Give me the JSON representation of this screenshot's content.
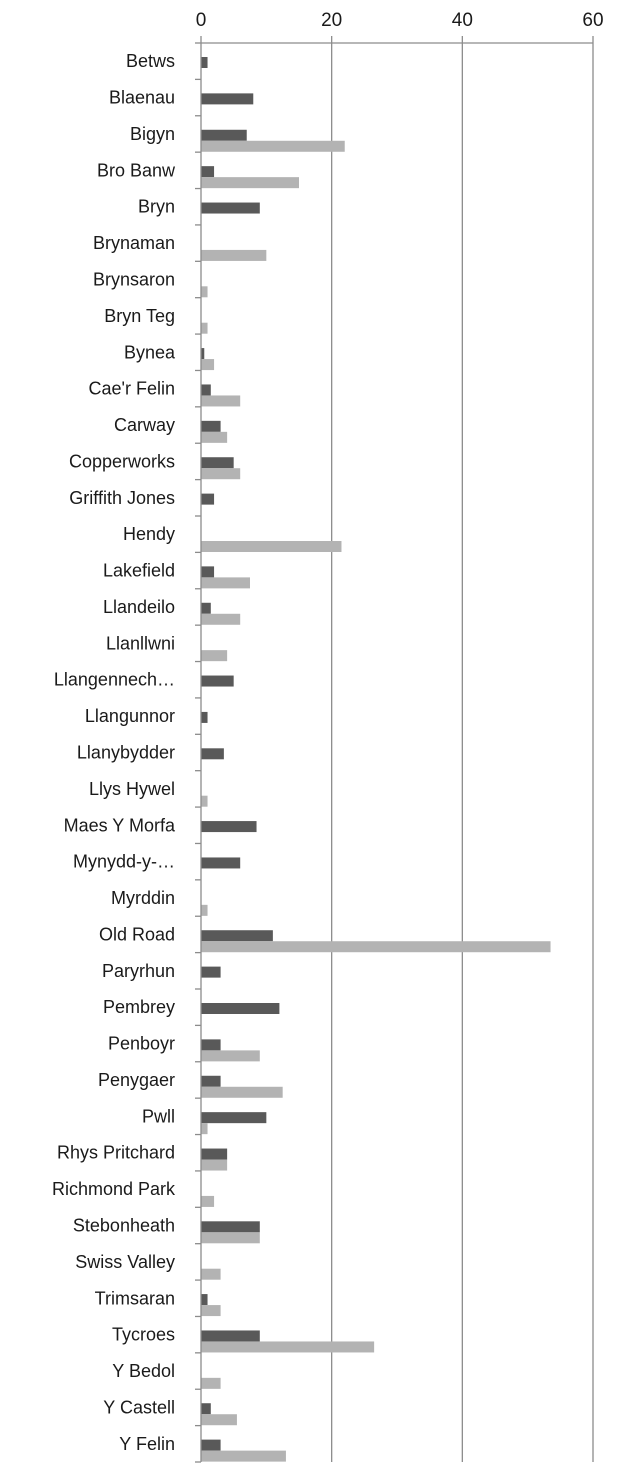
{
  "chart_data": {
    "type": "bar",
    "orientation": "horizontal",
    "title": "",
    "xlabel": "",
    "ylabel": "",
    "xlim": [
      0,
      60
    ],
    "x_ticks": [
      0,
      20,
      40,
      60
    ],
    "x_tick_labels": [
      "0",
      "20",
      "40",
      "60"
    ],
    "x_axis_position": "top",
    "grid": true,
    "legend": "none",
    "categories": [
      "Betws",
      "Blaenau",
      "Bigyn",
      "Bro Banw",
      "Bryn",
      "Brynaman",
      "Brynsaron",
      "Bryn Teg",
      "Bynea",
      "Cae'r Felin",
      "Carway",
      "Copperworks",
      "Griffith Jones",
      "Hendy",
      "Lakefield",
      "Llandeilo",
      "Llanllwni",
      "Llangennech…",
      "Llangunnor",
      "Llanybydder",
      "Llys Hywel",
      "Maes Y Morfa",
      "Mynydd-y-…",
      "Myrddin",
      "Old Road",
      "Paryrhun",
      "Pembrey",
      "Penboyr",
      "Penygaer",
      "Pwll",
      "Rhys Pritchard",
      "Richmond Park",
      "Stebonheath",
      "Swiss Valley",
      "Trimsaran",
      "Tycroes",
      "Y Bedol",
      "Y Castell",
      "Y Felin"
    ],
    "series": [
      {
        "color": "#595959",
        "values": [
          1,
          8,
          7,
          2,
          9,
          0,
          0,
          0,
          0.5,
          1.5,
          3,
          5,
          2,
          0,
          2,
          1.5,
          0,
          5,
          1,
          3.5,
          0,
          8.5,
          6,
          0,
          11,
          3,
          12,
          3,
          3,
          10,
          4,
          0,
          9,
          0,
          1,
          9,
          0,
          1.5,
          3
        ]
      },
      {
        "color": "#b3b3b3",
        "values": [
          0,
          0,
          22,
          15,
          0,
          10,
          1,
          1,
          2,
          6,
          4,
          6,
          0,
          21.5,
          7.5,
          6,
          4,
          0,
          0,
          0,
          1,
          0,
          0,
          1,
          53.5,
          0,
          0,
          9,
          12.5,
          1,
          4,
          2,
          9,
          3,
          3,
          26.5,
          3,
          5.5,
          13
        ]
      }
    ]
  }
}
